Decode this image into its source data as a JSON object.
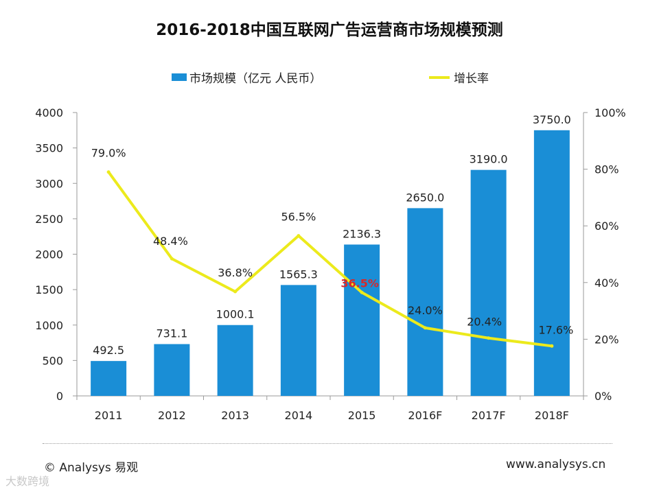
{
  "chart_data": {
    "type": "bar+line",
    "title": "2016-2018中国互联网广告运营商市场规模预测",
    "categories": [
      "2011",
      "2012",
      "2013",
      "2014",
      "2015",
      "2016F",
      "2017F",
      "2018F"
    ],
    "series": [
      {
        "name": "市场规模（亿元 人民币）",
        "type": "bar",
        "axis": "left",
        "values": [
          492.5,
          731.1,
          1000.1,
          1565.3,
          2136.3,
          2650.0,
          3190.0,
          3750.0
        ],
        "labels": [
          "492.5",
          "731.1",
          "1000.1",
          "1565.3",
          "2136.3",
          "2650.0",
          "3190.0",
          "3750.0"
        ]
      },
      {
        "name": "增长率",
        "type": "line",
        "axis": "right",
        "values": [
          79.0,
          48.4,
          36.8,
          56.5,
          36.5,
          24.0,
          20.4,
          17.6
        ],
        "labels": [
          "79.0%",
          "48.4%",
          "36.8%",
          "56.5%",
          "36.5%",
          "24.0%",
          "20.4%",
          "17.6%"
        ]
      }
    ],
    "y_left": {
      "min": 0,
      "max": 4000,
      "step": 500,
      "ticks": [
        "0",
        "500",
        "1000",
        "1500",
        "2000",
        "2500",
        "3000",
        "3500",
        "4000"
      ]
    },
    "y_right": {
      "min": 0,
      "max": 100,
      "step": 20,
      "ticks": [
        "0%",
        "20%",
        "40%",
        "60%",
        "80%",
        "100%"
      ]
    },
    "legend_position": "top-center",
    "grid": false
  },
  "colors": {
    "bar": "#1a8ed6",
    "line": "#ecea1c",
    "axis": "#9a9a9a",
    "highlight_label": "#d8282a",
    "text": "#222222"
  },
  "legend": {
    "bar_label": "市场规模（亿元 人民币）",
    "line_label": "增长率"
  },
  "footer": {
    "copyright": "© Analysys 易观",
    "url": "www.analysys.cn",
    "badge": "大数跨境"
  }
}
